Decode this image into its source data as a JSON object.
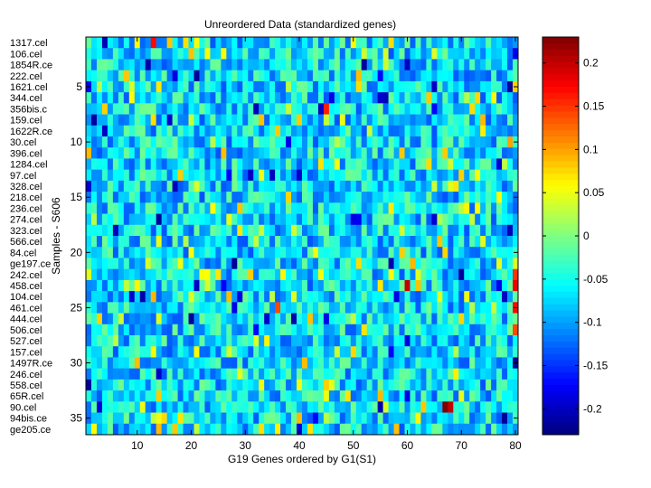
{
  "chart_data": {
    "type": "heatmap",
    "title": "Unreordered Data (standardized genes)",
    "xlabel": "G19 Genes ordered by G1(S1)",
    "ylabel": "Samples - S606",
    "x_range": [
      1,
      80
    ],
    "y_range": [
      1,
      36
    ],
    "x_ticks": [
      10,
      20,
      30,
      40,
      50,
      60,
      70,
      80
    ],
    "y_ticks": [
      5,
      10,
      15,
      20,
      25,
      30,
      35
    ],
    "n_columns": 80,
    "n_rows": 36,
    "sample_labels": [
      "1317.cel",
      "106.cel",
      "1854R.ce",
      "222.cel",
      "1621.cel",
      "344.cel",
      "356bis.c",
      "159.cel",
      "1622R.ce",
      "30.cel",
      "396.cel",
      "1284.cel",
      "97.cel",
      "328.cel",
      "218.cel",
      "236.cel",
      "274.cel",
      "323.cel",
      "566.cel",
      "84.cel",
      "ge197.ce",
      "242.cel",
      "458.cel",
      "104.cel",
      "461.cel",
      "444.cel",
      "506.cel",
      "527.cel",
      "157.cel",
      "1497R.ce",
      "246.cel",
      "558.cel",
      "65R.cel",
      "90.cel",
      "94bis.ce",
      "ge205.ce"
    ],
    "colorbar": {
      "colormap": "jet",
      "range": [
        -0.23,
        0.23
      ],
      "ticks": [
        0.2,
        0.15,
        0.1,
        0.05,
        0,
        -0.05,
        -0.1,
        -0.15,
        -0.2
      ],
      "tick_labels": [
        "0.2",
        "0.15",
        "0.1",
        "0.05",
        "0",
        "-0.05",
        "-0.1",
        "-0.15",
        "-0.2"
      ]
    },
    "notable_cells": [
      {
        "row": 1,
        "col": 13,
        "value": 0.17
      },
      {
        "row": 7,
        "col": 45,
        "value": 0.16
      },
      {
        "row": 10,
        "col": 79,
        "value": 0.1
      },
      {
        "row": 13,
        "col": 18,
        "value": 0.08
      },
      {
        "row": 22,
        "col": 80,
        "value": 0.15
      },
      {
        "row": 23,
        "col": 60,
        "value": 0.2
      },
      {
        "row": 23,
        "col": 80,
        "value": 0.18
      },
      {
        "row": 25,
        "col": 36,
        "value": 0.14
      },
      {
        "row": 25,
        "col": 80,
        "value": 0.17
      },
      {
        "row": 27,
        "col": 80,
        "value": 0.14
      },
      {
        "row": 34,
        "col": 67,
        "value": 0.23
      },
      {
        "row": 34,
        "col": 68,
        "value": 0.2
      },
      {
        "row": 7,
        "col": 44,
        "value": -0.2
      },
      {
        "row": 30,
        "col": 80,
        "value": -0.22
      },
      {
        "row": 24,
        "col": 78,
        "value": -0.2
      }
    ],
    "background_distribution": "cell values mostly between -0.15 and 0.02 (blue-cyan), with sparse positive outliers"
  }
}
